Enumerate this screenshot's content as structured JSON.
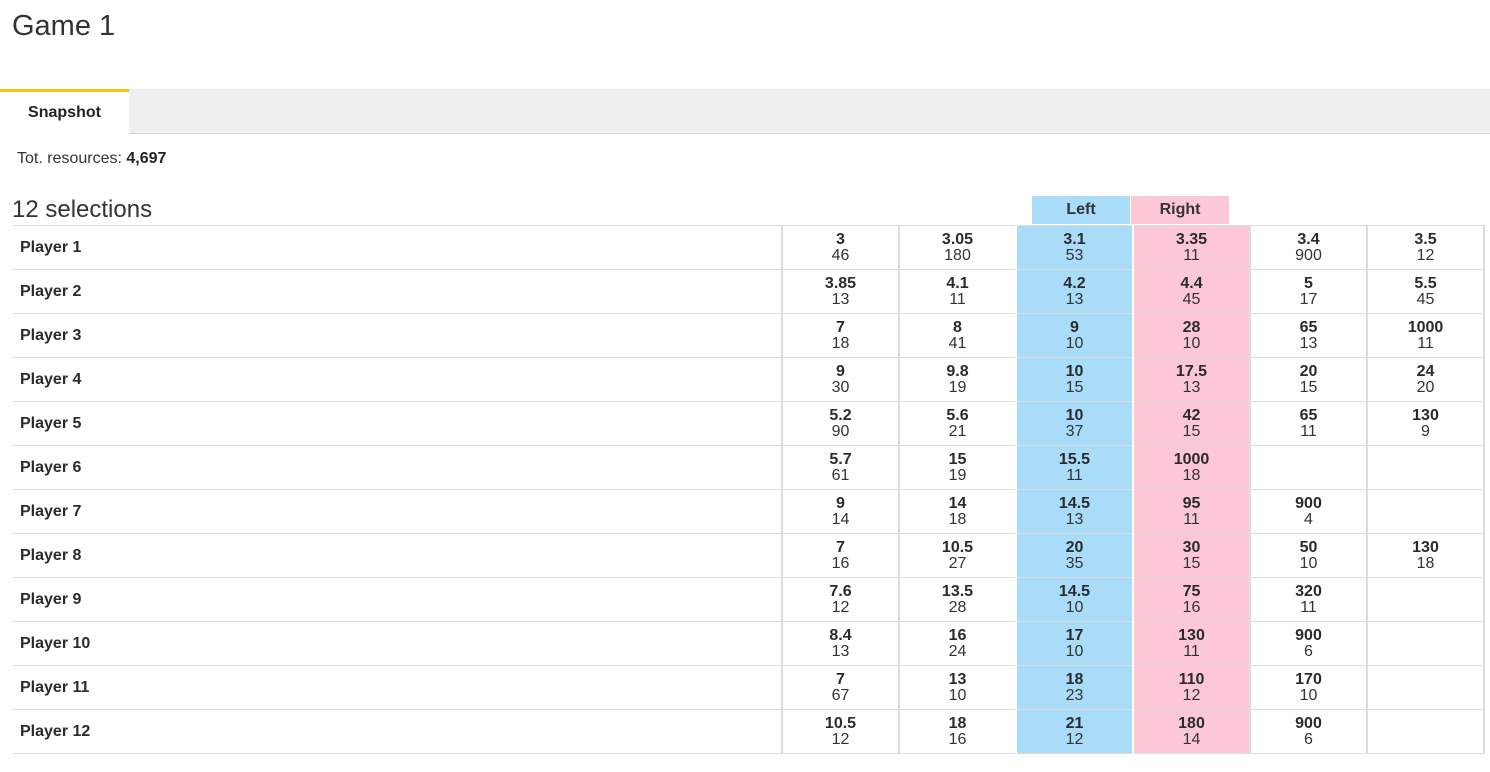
{
  "header": {
    "title": "Game 1"
  },
  "tabs": [
    {
      "label": "Snapshot"
    }
  ],
  "resources": {
    "label": "Tot. resources:",
    "value": "4,697"
  },
  "selections": {
    "title": "12 selections"
  },
  "columns": {
    "left_label": "Left",
    "right_label": "Right"
  },
  "colors": {
    "left_highlight": "#a8dcf8",
    "right_highlight": "#fdc8d5",
    "active_tab_accent": "#f0c419"
  },
  "rows": [
    {
      "name": "Player 1",
      "cells": [
        {
          "price": "3",
          "size": "46"
        },
        {
          "price": "3.05",
          "size": "180"
        },
        {
          "price": "3.1",
          "size": "53"
        },
        {
          "price": "3.35",
          "size": "11"
        },
        {
          "price": "3.4",
          "size": "900"
        },
        {
          "price": "3.5",
          "size": "12"
        }
      ]
    },
    {
      "name": "Player 2",
      "cells": [
        {
          "price": "3.85",
          "size": "13"
        },
        {
          "price": "4.1",
          "size": "11"
        },
        {
          "price": "4.2",
          "size": "13"
        },
        {
          "price": "4.4",
          "size": "45"
        },
        {
          "price": "5",
          "size": "17"
        },
        {
          "price": "5.5",
          "size": "45"
        }
      ]
    },
    {
      "name": "Player 3",
      "cells": [
        {
          "price": "7",
          "size": "18"
        },
        {
          "price": "8",
          "size": "41"
        },
        {
          "price": "9",
          "size": "10"
        },
        {
          "price": "28",
          "size": "10"
        },
        {
          "price": "65",
          "size": "13"
        },
        {
          "price": "1000",
          "size": "11"
        }
      ]
    },
    {
      "name": "Player 4",
      "cells": [
        {
          "price": "9",
          "size": "30"
        },
        {
          "price": "9.8",
          "size": "19"
        },
        {
          "price": "10",
          "size": "15"
        },
        {
          "price": "17.5",
          "size": "13"
        },
        {
          "price": "20",
          "size": "15"
        },
        {
          "price": "24",
          "size": "20"
        }
      ]
    },
    {
      "name": "Player 5",
      "cells": [
        {
          "price": "5.2",
          "size": "90"
        },
        {
          "price": "5.6",
          "size": "21"
        },
        {
          "price": "10",
          "size": "37"
        },
        {
          "price": "42",
          "size": "15"
        },
        {
          "price": "65",
          "size": "11"
        },
        {
          "price": "130",
          "size": "9"
        }
      ]
    },
    {
      "name": "Player 6",
      "cells": [
        {
          "price": "5.7",
          "size": "61"
        },
        {
          "price": "15",
          "size": "19"
        },
        {
          "price": "15.5",
          "size": "11"
        },
        {
          "price": "1000",
          "size": "18"
        },
        {
          "price": "",
          "size": ""
        },
        {
          "price": "",
          "size": ""
        }
      ]
    },
    {
      "name": "Player 7",
      "cells": [
        {
          "price": "9",
          "size": "14"
        },
        {
          "price": "14",
          "size": "18"
        },
        {
          "price": "14.5",
          "size": "13"
        },
        {
          "price": "95",
          "size": "11"
        },
        {
          "price": "900",
          "size": "4"
        },
        {
          "price": "",
          "size": ""
        }
      ]
    },
    {
      "name": "Player 8",
      "cells": [
        {
          "price": "7",
          "size": "16"
        },
        {
          "price": "10.5",
          "size": "27"
        },
        {
          "price": "20",
          "size": "35"
        },
        {
          "price": "30",
          "size": "15"
        },
        {
          "price": "50",
          "size": "10"
        },
        {
          "price": "130",
          "size": "18"
        }
      ]
    },
    {
      "name": "Player 9",
      "cells": [
        {
          "price": "7.6",
          "size": "12"
        },
        {
          "price": "13.5",
          "size": "28"
        },
        {
          "price": "14.5",
          "size": "10"
        },
        {
          "price": "75",
          "size": "16"
        },
        {
          "price": "320",
          "size": "11"
        },
        {
          "price": "",
          "size": ""
        }
      ]
    },
    {
      "name": "Player 10",
      "cells": [
        {
          "price": "8.4",
          "size": "13"
        },
        {
          "price": "16",
          "size": "24"
        },
        {
          "price": "17",
          "size": "10"
        },
        {
          "price": "130",
          "size": "11"
        },
        {
          "price": "900",
          "size": "6"
        },
        {
          "price": "",
          "size": ""
        }
      ]
    },
    {
      "name": "Player 11",
      "cells": [
        {
          "price": "7",
          "size": "67"
        },
        {
          "price": "13",
          "size": "10"
        },
        {
          "price": "18",
          "size": "23"
        },
        {
          "price": "110",
          "size": "12"
        },
        {
          "price": "170",
          "size": "10"
        },
        {
          "price": "",
          "size": ""
        }
      ]
    },
    {
      "name": "Player 12",
      "cells": [
        {
          "price": "10.5",
          "size": "12"
        },
        {
          "price": "18",
          "size": "16"
        },
        {
          "price": "21",
          "size": "12"
        },
        {
          "price": "180",
          "size": "14"
        },
        {
          "price": "900",
          "size": "6"
        },
        {
          "price": "",
          "size": ""
        }
      ]
    }
  ]
}
